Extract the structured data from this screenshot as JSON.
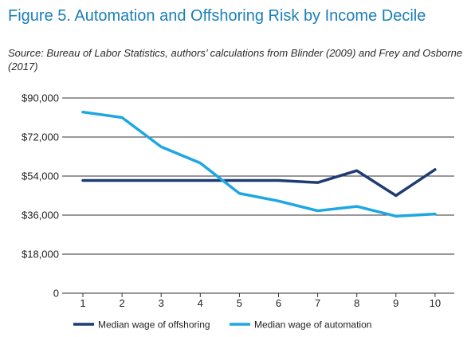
{
  "chart_data": {
    "type": "line",
    "title": "Figure 5. Automation and Offshoring Risk by Income Decile",
    "subtitle": "Source: Bureau of Labor Statistics, authors’ calculations from Blinder (2009) and Frey and Osborne (2017)",
    "x": [
      1,
      2,
      3,
      4,
      5,
      6,
      7,
      8,
      9,
      10
    ],
    "ylim": [
      0,
      90000
    ],
    "yticks": [
      0,
      18000,
      36000,
      54000,
      72000,
      90000
    ],
    "ytick_labels": [
      "0",
      "$18,000",
      "$36,000",
      "$54,000",
      "$72,000",
      "$90,000"
    ],
    "xtick_labels": [
      "1",
      "2",
      "3",
      "4",
      "5",
      "6",
      "7",
      "8",
      "9",
      "10"
    ],
    "grid": "horizontal",
    "legend": "bottom",
    "series": [
      {
        "name": "Median wage of offshoring",
        "color": "#1f3b73",
        "values": [
          52000,
          52000,
          52000,
          52000,
          52000,
          52000,
          51000,
          56500,
          45000,
          57000
        ]
      },
      {
        "name": "Median wage of automation",
        "color": "#1ea7e1",
        "values": [
          83500,
          81000,
          67500,
          60000,
          46000,
          42500,
          38000,
          40000,
          35500,
          36500
        ]
      }
    ]
  }
}
